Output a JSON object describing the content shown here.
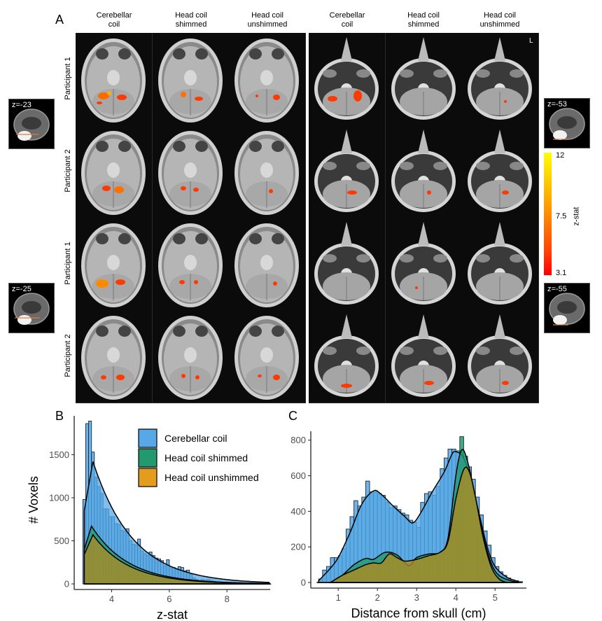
{
  "panelA": {
    "letter": "A",
    "column_headers": [
      "Cerebellar coil",
      "Head coil shimmed",
      "Head coil unshimmed",
      "Cerebellar coil",
      "Head coil shimmed",
      "Head coil unshimmed"
    ],
    "column_headers_lines": [
      [
        "Cerebellar",
        "coil"
      ],
      [
        "Head coil",
        "shimmed"
      ],
      [
        "Head coil",
        "unshimmed"
      ],
      [
        "Cerebellar",
        "coil"
      ],
      [
        "Head coil",
        "shimmed"
      ],
      [
        "Head coil",
        "unshimmed"
      ]
    ],
    "row_labels": [
      "Participant 1",
      "Participant 2",
      "Participant 1",
      "Participant 2"
    ],
    "orientation_label": "L",
    "insets": [
      {
        "label": "z=-23"
      },
      {
        "label": "z=-25"
      },
      {
        "label": "z=-53"
      },
      {
        "label": "z=-55"
      }
    ],
    "colorbar": {
      "title": "z-stat",
      "max": "12",
      "mid": "7.5",
      "min": "3.1",
      "colors": [
        "#ffff00",
        "#ffa500",
        "#ff0000"
      ]
    }
  },
  "legend": {
    "items": [
      {
        "label": "Cerebellar coil",
        "color": "#56a8e6"
      },
      {
        "label": "Head coil shimmed",
        "color": "#239a6d"
      },
      {
        "label": "Head coil unshimmed",
        "color": "#e39c1d"
      }
    ]
  },
  "chart_data": [
    {
      "panel": "B",
      "type": "bar",
      "subtype": "histogram-with-density",
      "title": "",
      "xlabel": "z-stat",
      "ylabel": "# Voxels",
      "xlim": [
        2.7,
        9.5
      ],
      "ylim": [
        -80,
        1950
      ],
      "xticks": [
        4,
        6,
        8
      ],
      "yticks": [
        0,
        500,
        1000,
        1500
      ],
      "grid": false,
      "legend_position": "top-right",
      "bin_width": 0.1,
      "series": [
        {
          "name": "Cerebellar coil",
          "color": "#56a8e6",
          "bin_starts": [
            3.0,
            3.1,
            3.2,
            3.3,
            3.4,
            3.5,
            3.6,
            3.7,
            3.8,
            3.9,
            4.0,
            4.1,
            4.2,
            4.3,
            4.4,
            4.5,
            4.6,
            4.7,
            4.8,
            4.9,
            5.0,
            5.1,
            5.2,
            5.3,
            5.4,
            5.5,
            5.6,
            5.7,
            5.8,
            5.9,
            6.0,
            6.1,
            6.2,
            6.3,
            6.4,
            6.5,
            6.6,
            6.7,
            6.8,
            6.9,
            7.0,
            7.1,
            7.2,
            7.3,
            7.4,
            7.5,
            7.6,
            7.7,
            7.8,
            7.9,
            8.0,
            8.2,
            8.4,
            8.6,
            8.8,
            9.0
          ],
          "counts": [
            980,
            1860,
            1890,
            1530,
            1240,
            1130,
            1050,
            870,
            870,
            780,
            780,
            700,
            690,
            620,
            610,
            640,
            500,
            460,
            450,
            520,
            380,
            350,
            330,
            370,
            330,
            300,
            290,
            270,
            210,
            280,
            200,
            190,
            170,
            200,
            190,
            150,
            160,
            110,
            70,
            50,
            40,
            50,
            40,
            50,
            40,
            30,
            20,
            20,
            20,
            10,
            10,
            10,
            10,
            10,
            5,
            5
          ],
          "density_peak": 1420,
          "density_peak_at": 3.35
        },
        {
          "name": "Head coil shimmed",
          "color": "#239a6d",
          "density_peak": 670,
          "density_peak_at": 3.3
        },
        {
          "name": "Head coil unshimmed",
          "color": "#e39c1d",
          "density_peak": 570,
          "density_peak_at": 3.35
        }
      ]
    },
    {
      "panel": "C",
      "type": "bar",
      "subtype": "histogram-with-density",
      "title": "",
      "xlabel": "Distance from skull (cm)",
      "ylabel": "",
      "xlim": [
        0.3,
        5.8
      ],
      "ylim": [
        -30,
        850
      ],
      "xticks": [
        1,
        2,
        3,
        4,
        5
      ],
      "yticks": [
        0,
        200,
        400,
        600,
        800
      ],
      "grid": false,
      "bin_width": 0.1,
      "series": [
        {
          "name": "Cerebellar coil",
          "color": "#56a8e6",
          "bin_starts": [
            0.5,
            0.6,
            0.7,
            0.8,
            0.9,
            1.0,
            1.1,
            1.2,
            1.3,
            1.4,
            1.5,
            1.6,
            1.7,
            1.8,
            1.9,
            2.0,
            2.1,
            2.2,
            2.3,
            2.4,
            2.5,
            2.6,
            2.7,
            2.8,
            2.9,
            3.0,
            3.1,
            3.2,
            3.3,
            3.4,
            3.5,
            3.6,
            3.7,
            3.8,
            3.9,
            4.0,
            4.1,
            4.2,
            4.3,
            4.4,
            4.5,
            4.6,
            4.7,
            4.8,
            4.9,
            5.0,
            5.1,
            5.2,
            5.3,
            5.4,
            5.5,
            5.6
          ],
          "counts": [
            20,
            70,
            90,
            140,
            140,
            150,
            190,
            300,
            370,
            460,
            430,
            480,
            570,
            510,
            510,
            500,
            490,
            450,
            420,
            430,
            410,
            390,
            380,
            350,
            340,
            310,
            450,
            500,
            510,
            490,
            540,
            640,
            700,
            750,
            750,
            740,
            740,
            710,
            650,
            580,
            480,
            380,
            290,
            210,
            140,
            90,
            60,
            40,
            25,
            15,
            10,
            5
          ],
          "density": [
            [
              0.5,
              10
            ],
            [
              0.8,
              80
            ],
            [
              1.0,
              140
            ],
            [
              1.3,
              280
            ],
            [
              1.6,
              440
            ],
            [
              1.9,
              515
            ],
            [
              2.1,
              495
            ],
            [
              2.4,
              430
            ],
            [
              2.7,
              370
            ],
            [
              2.9,
              335
            ],
            [
              3.1,
              390
            ],
            [
              3.4,
              510
            ],
            [
              3.7,
              620
            ],
            [
              3.9,
              720
            ],
            [
              4.0,
              735
            ],
            [
              4.2,
              700
            ],
            [
              4.4,
              560
            ],
            [
              4.6,
              380
            ],
            [
              4.8,
              200
            ],
            [
              5.0,
              90
            ],
            [
              5.3,
              30
            ],
            [
              5.6,
              5
            ]
          ]
        },
        {
          "name": "Head coil shimmed",
          "color": "#239a6d",
          "spike": {
            "at": 4.1,
            "count": 820
          },
          "density": [
            [
              0.8,
              0
            ],
            [
              1.1,
              40
            ],
            [
              1.4,
              100
            ],
            [
              1.7,
              135
            ],
            [
              1.9,
              130
            ],
            [
              2.2,
              170
            ],
            [
              2.5,
              155
            ],
            [
              2.8,
              95
            ],
            [
              3.0,
              140
            ],
            [
              3.3,
              160
            ],
            [
              3.6,
              170
            ],
            [
              3.8,
              250
            ],
            [
              4.0,
              600
            ],
            [
              4.15,
              745
            ],
            [
              4.3,
              680
            ],
            [
              4.5,
              480
            ],
            [
              4.7,
              260
            ],
            [
              4.9,
              110
            ],
            [
              5.1,
              40
            ],
            [
              5.4,
              10
            ],
            [
              5.6,
              0
            ]
          ]
        },
        {
          "name": "Head coil unshimmed",
          "color": "#e39c1d",
          "density": [
            [
              0.8,
              0
            ],
            [
              1.1,
              40
            ],
            [
              1.4,
              70
            ],
            [
              1.7,
              100
            ],
            [
              1.9,
              110
            ],
            [
              2.1,
              110
            ],
            [
              2.3,
              160
            ],
            [
              2.5,
              140
            ],
            [
              2.7,
              120
            ],
            [
              3.0,
              130
            ],
            [
              3.3,
              150
            ],
            [
              3.6,
              170
            ],
            [
              3.8,
              230
            ],
            [
              4.0,
              470
            ],
            [
              4.2,
              635
            ],
            [
              4.35,
              620
            ],
            [
              4.5,
              480
            ],
            [
              4.7,
              250
            ],
            [
              4.9,
              90
            ],
            [
              5.1,
              20
            ],
            [
              5.3,
              0
            ]
          ]
        }
      ]
    }
  ],
  "panelB_letter": "B",
  "panelC_letter": "C"
}
